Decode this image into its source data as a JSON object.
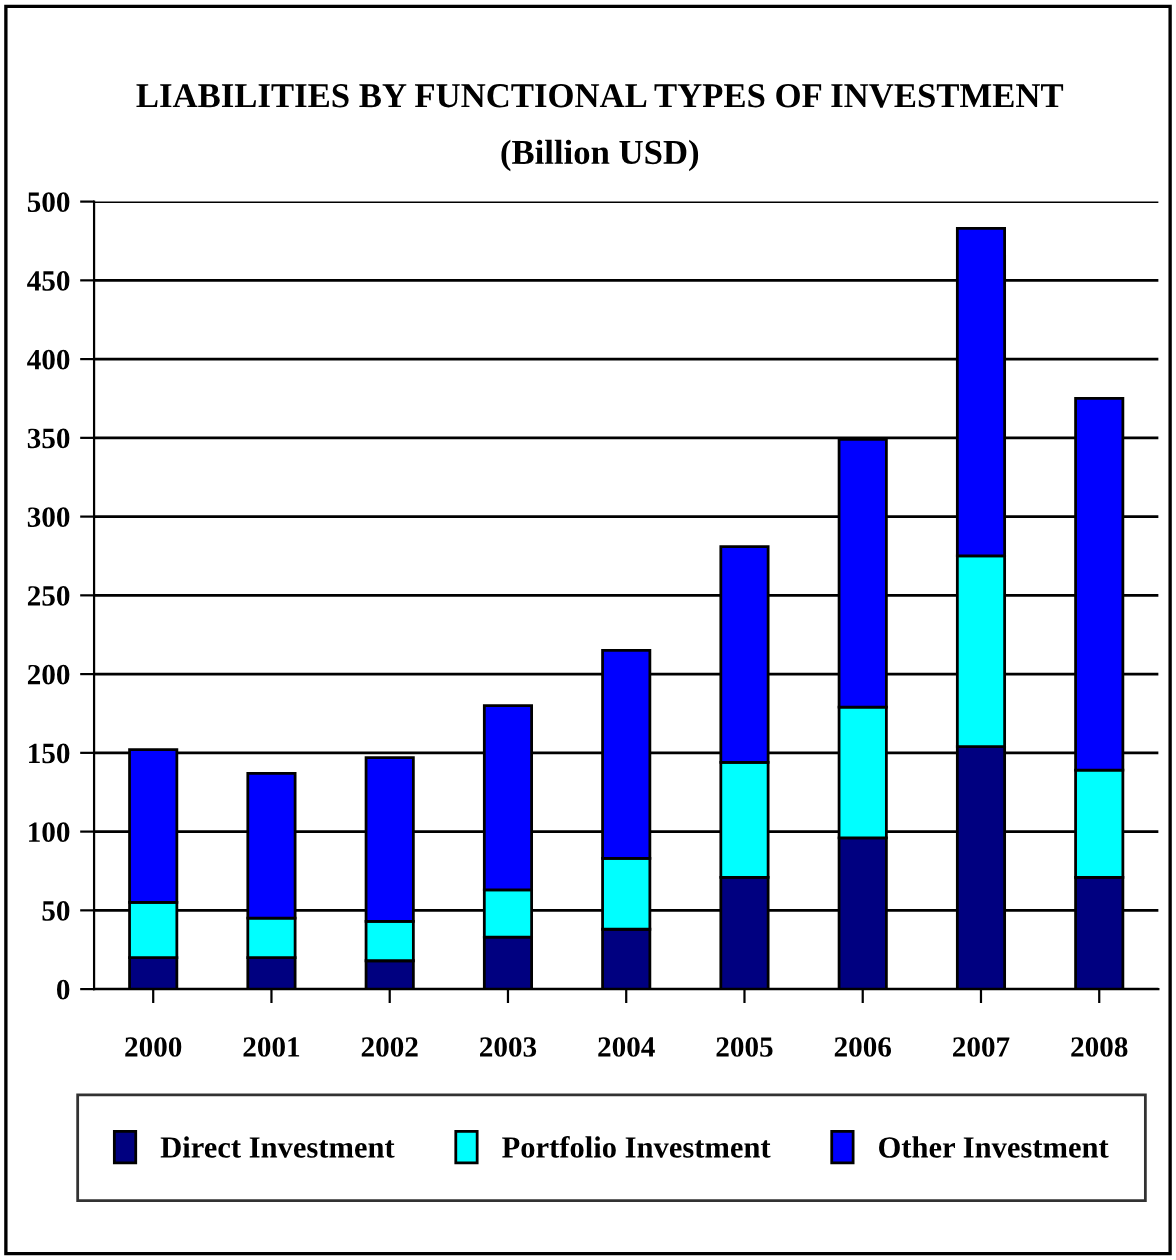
{
  "chart_data": {
    "type": "bar",
    "title": "LIABILITIES BY FUNCTIONAL TYPES OF INVESTMENT",
    "subtitle": "(Billion USD)",
    "categories": [
      "2000",
      "2001",
      "2002",
      "2003",
      "2004",
      "2005",
      "2006",
      "2007",
      "2008"
    ],
    "stacked": true,
    "series": [
      {
        "name": "Direct Investment",
        "color": "#000080",
        "values": [
          20,
          20,
          18,
          33,
          38,
          71,
          96,
          154,
          71
        ]
      },
      {
        "name": "Portfolio Investment",
        "color": "#00ffff",
        "values": [
          35,
          25,
          25,
          30,
          45,
          73,
          83,
          121,
          68
        ]
      },
      {
        "name": "Other Investment",
        "color": "#0000ff",
        "values": [
          97,
          92,
          104,
          117,
          132,
          137,
          170,
          208,
          236
        ]
      }
    ],
    "ylim": [
      0,
      500
    ],
    "yticks": [
      0,
      50,
      100,
      150,
      200,
      250,
      300,
      350,
      400,
      450,
      500
    ],
    "grid": "y",
    "legend": "bottom"
  }
}
